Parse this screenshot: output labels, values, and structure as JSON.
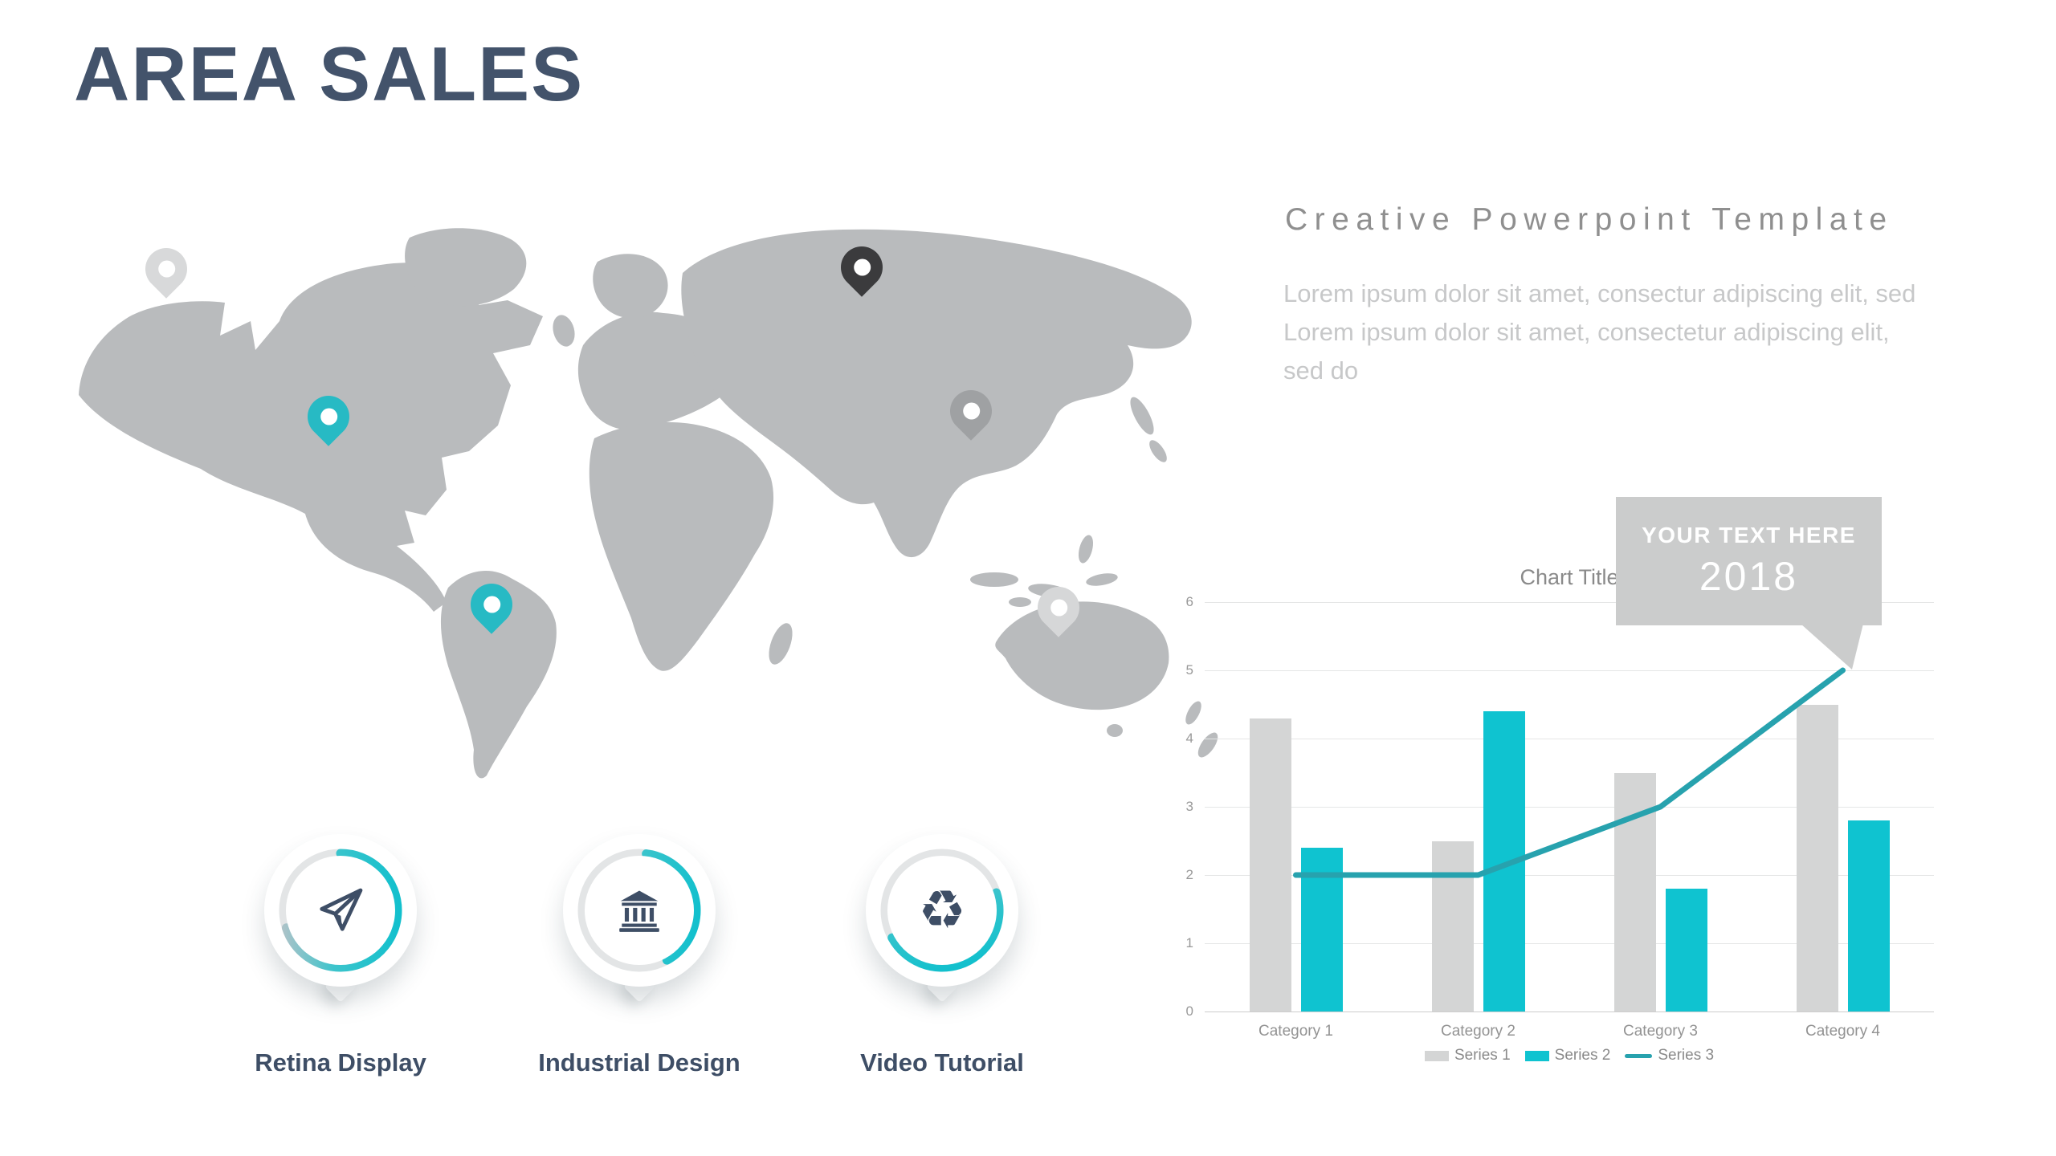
{
  "slide": {
    "title": "AREA SALES"
  },
  "colors": {
    "title_text": "#43536b",
    "accent_teal": "#0fc3d0",
    "line_teal": "#27a2ae",
    "map_land": "#b9bbbd",
    "bar_gray": "#d4d5d5",
    "callout_bg": "#cbcccc",
    "muted_heading": "#8f8f8f",
    "body_text": "#c7c8c9"
  },
  "map": {
    "pins": [
      {
        "name": "pin-light-1",
        "color": "#d8d9da"
      },
      {
        "name": "pin-teal-1",
        "color": "#27bac4"
      },
      {
        "name": "pin-teal-2",
        "color": "#27bac4"
      },
      {
        "name": "pin-dark",
        "color": "#3b3b3d"
      },
      {
        "name": "pin-gray",
        "color": "#9fa1a3"
      },
      {
        "name": "pin-light-2",
        "color": "#d6d7d8"
      }
    ]
  },
  "features": [
    {
      "label": "Retina Display",
      "icon": "paper-plane-icon",
      "progress": 70,
      "start_deg": -90
    },
    {
      "label": "Industrial Design",
      "icon": "bank-icon",
      "progress": 40,
      "start_deg": -83
    },
    {
      "label": "Video Tutorial",
      "icon": "recycle-icon",
      "progress": 47,
      "start_deg": -18
    }
  ],
  "right_panel": {
    "heading": "Creative Powerpoint Template",
    "body": "Lorem ipsum dolor sit amet, consectur adipiscing elit, sed Lorem ipsum dolor sit amet, consectetur adipiscing elit, sed do"
  },
  "chart_data": {
    "type": "bar",
    "title": "Chart Title",
    "categories": [
      "Category 1",
      "Category 2",
      "Category 3",
      "Category 4"
    ],
    "series": [
      {
        "name": "Series 1",
        "type": "bar",
        "color": "#d4d5d5",
        "values": [
          4.3,
          2.5,
          3.5,
          4.5
        ]
      },
      {
        "name": "Series 2",
        "type": "bar",
        "color": "#0fc3d0",
        "values": [
          2.4,
          4.4,
          1.8,
          2.8
        ]
      },
      {
        "name": "Series 3",
        "type": "line",
        "color": "#27a2ae",
        "values": [
          2,
          2,
          3,
          5
        ]
      }
    ],
    "ylim": [
      0,
      6
    ],
    "yticks": [
      0,
      1,
      2,
      3,
      4,
      5,
      6
    ],
    "grid": true,
    "legend_position": "bottom",
    "callout": {
      "line1": "YOUR TEXT HERE",
      "line2": "2018"
    }
  }
}
